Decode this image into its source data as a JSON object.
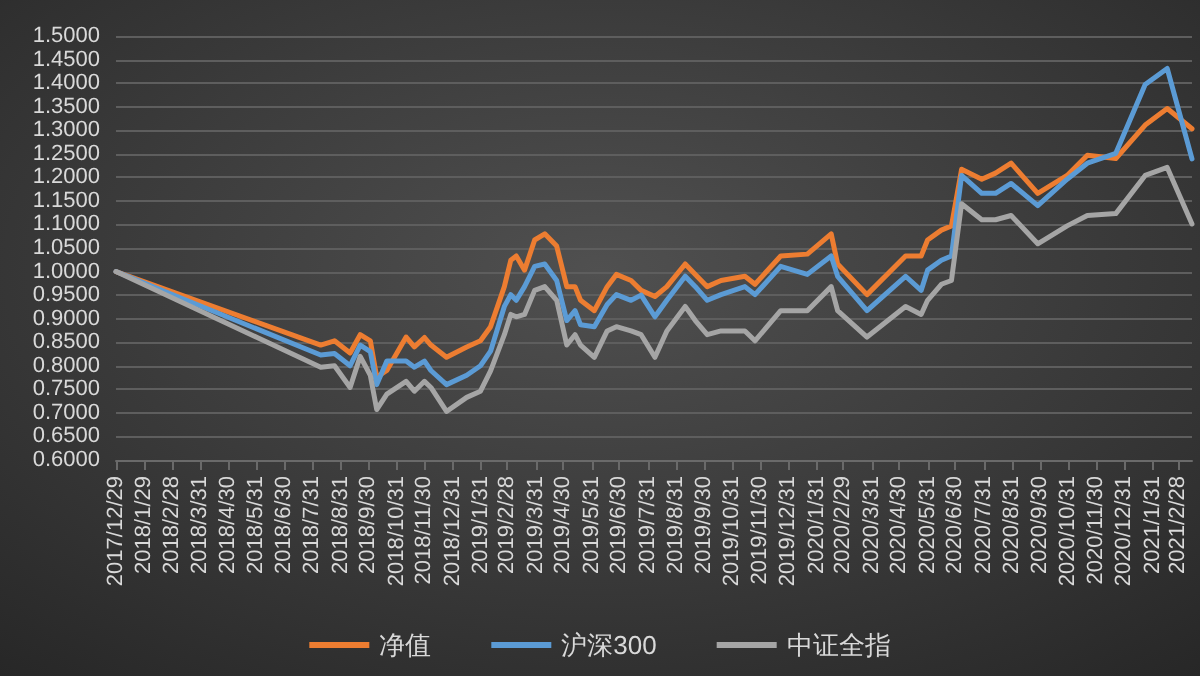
{
  "chart_data": {
    "type": "line",
    "x": [
      "2017-12-29",
      "2018-08-09",
      "2018-08-24",
      "2018-09-10",
      "2018-09-21",
      "2018-10-02",
      "2018-10-09",
      "2018-10-20",
      "2018-11-10",
      "2018-11-19",
      "2018-11-30",
      "2018-12-07",
      "2018-12-24",
      "2019-01-15",
      "2019-01-30",
      "2019-02-10",
      "2019-02-25",
      "2019-03-04",
      "2019-03-10",
      "2019-03-19",
      "2019-03-30",
      "2019-04-10",
      "2019-04-23",
      "2019-05-04",
      "2019-05-13",
      "2019-05-19",
      "2019-06-03",
      "2019-06-17",
      "2019-06-27",
      "2019-07-13",
      "2019-07-24",
      "2019-08-08",
      "2019-08-21",
      "2019-09-10",
      "2019-09-21",
      "2019-10-04",
      "2019-10-19",
      "2019-11-14",
      "2019-11-25",
      "2019-12-23",
      "2020-01-21",
      "2020-02-16",
      "2020-02-23",
      "2020-03-26",
      "2020-05-07",
      "2020-05-24",
      "2020-05-31",
      "2020-06-15",
      "2020-06-26",
      "2020-07-07",
      "2020-07-29",
      "2020-08-13",
      "2020-08-30",
      "2020-09-28",
      "2020-10-30",
      "2020-11-21",
      "2020-12-22",
      "2021-01-23",
      "2021-02-16",
      "2021-03-15"
    ],
    "series": [
      {
        "name": "净值",
        "color": "#ed7d31",
        "values": [
          1.0,
          0.844,
          0.853,
          0.827,
          0.866,
          0.853,
          0.776,
          0.79,
          0.861,
          0.84,
          0.86,
          0.844,
          0.818,
          0.84,
          0.853,
          0.883,
          0.968,
          1.024,
          1.033,
          1.003,
          1.067,
          1.08,
          1.054,
          0.968,
          0.968,
          0.939,
          0.917,
          0.968,
          0.994,
          0.981,
          0.96,
          0.947,
          0.968,
          1.016,
          0.994,
          0.968,
          0.981,
          0.99,
          0.973,
          1.033,
          1.037,
          1.08,
          1.016,
          0.951,
          1.033,
          1.033,
          1.067,
          1.088,
          1.097,
          1.217,
          1.196,
          1.209,
          1.23,
          1.166,
          1.204,
          1.247,
          1.24,
          1.311,
          1.346,
          1.303
        ]
      },
      {
        "name": "沪深300",
        "color": "#5b9bd5",
        "values": [
          1.0,
          0.823,
          0.826,
          0.8,
          0.844,
          0.83,
          0.76,
          0.81,
          0.81,
          0.797,
          0.81,
          0.79,
          0.76,
          0.78,
          0.8,
          0.831,
          0.926,
          0.951,
          0.939,
          0.968,
          1.011,
          1.016,
          0.981,
          0.896,
          0.917,
          0.887,
          0.883,
          0.93,
          0.951,
          0.939,
          0.95,
          0.904,
          0.939,
          0.99,
          0.968,
          0.939,
          0.951,
          0.968,
          0.951,
          1.011,
          0.994,
          1.033,
          0.99,
          0.917,
          0.99,
          0.96,
          1.003,
          1.024,
          1.033,
          1.204,
          1.166,
          1.166,
          1.187,
          1.14,
          1.196,
          1.23,
          1.251,
          1.397,
          1.431,
          1.239
        ]
      },
      {
        "name": "中证全指",
        "color": "#a5a5a5",
        "values": [
          1.0,
          0.797,
          0.8,
          0.754,
          0.82,
          0.78,
          0.707,
          0.74,
          0.767,
          0.746,
          0.767,
          0.754,
          0.703,
          0.733,
          0.746,
          0.789,
          0.866,
          0.909,
          0.904,
          0.909,
          0.96,
          0.968,
          0.939,
          0.844,
          0.866,
          0.844,
          0.818,
          0.874,
          0.883,
          0.874,
          0.866,
          0.818,
          0.874,
          0.926,
          0.896,
          0.866,
          0.874,
          0.874,
          0.853,
          0.917,
          0.917,
          0.968,
          0.917,
          0.861,
          0.926,
          0.909,
          0.939,
          0.973,
          0.981,
          1.144,
          1.11,
          1.11,
          1.119,
          1.059,
          1.097,
          1.119,
          1.123,
          1.204,
          1.221,
          1.101
        ]
      }
    ],
    "xlim": [
      "2017-12-29",
      "2021-03-15"
    ],
    "xticks": [
      {
        "value": "2017-12-29",
        "label": "2017/12/29"
      },
      {
        "value": "2018-01-29",
        "label": "2018/1/29"
      },
      {
        "value": "2018-02-28",
        "label": "2018/2/28"
      },
      {
        "value": "2018-03-31",
        "label": "2018/3/31"
      },
      {
        "value": "2018-04-30",
        "label": "2018/4/30"
      },
      {
        "value": "2018-05-31",
        "label": "2018/5/31"
      },
      {
        "value": "2018-06-30",
        "label": "2018/6/30"
      },
      {
        "value": "2018-07-31",
        "label": "2018/7/31"
      },
      {
        "value": "2018-08-31",
        "label": "2018/8/31"
      },
      {
        "value": "2018-09-30",
        "label": "2018/9/30"
      },
      {
        "value": "2018-10-31",
        "label": "2018/10/31"
      },
      {
        "value": "2018-11-30",
        "label": "2018/11/30"
      },
      {
        "value": "2018-12-31",
        "label": "2018/12/31"
      },
      {
        "value": "2019-01-31",
        "label": "2019/1/31"
      },
      {
        "value": "2019-02-28",
        "label": "2019/2/28"
      },
      {
        "value": "2019-03-31",
        "label": "2019/3/31"
      },
      {
        "value": "2019-04-30",
        "label": "2019/4/30"
      },
      {
        "value": "2019-05-31",
        "label": "2019/5/31"
      },
      {
        "value": "2019-06-30",
        "label": "2019/6/30"
      },
      {
        "value": "2019-07-31",
        "label": "2019/7/31"
      },
      {
        "value": "2019-08-31",
        "label": "2019/8/31"
      },
      {
        "value": "2019-09-30",
        "label": "2019/9/30"
      },
      {
        "value": "2019-10-31",
        "label": "2019/10/31"
      },
      {
        "value": "2019-11-30",
        "label": "2019/11/30"
      },
      {
        "value": "2019-12-31",
        "label": "2019/12/31"
      },
      {
        "value": "2020-01-31",
        "label": "2020/1/31"
      },
      {
        "value": "2020-02-29",
        "label": "2020/2/29"
      },
      {
        "value": "2020-03-31",
        "label": "2020/3/31"
      },
      {
        "value": "2020-04-30",
        "label": "2020/4/30"
      },
      {
        "value": "2020-05-31",
        "label": "2020/5/31"
      },
      {
        "value": "2020-06-30",
        "label": "2020/6/30"
      },
      {
        "value": "2020-07-31",
        "label": "2020/7/31"
      },
      {
        "value": "2020-08-31",
        "label": "2020/8/31"
      },
      {
        "value": "2020-09-30",
        "label": "2020/9/30"
      },
      {
        "value": "2020-10-31",
        "label": "2020/10/31"
      },
      {
        "value": "2020-11-30",
        "label": "2020/11/30"
      },
      {
        "value": "2020-12-31",
        "label": "2020/12/31"
      },
      {
        "value": "2021-01-31",
        "label": "2021/1/31"
      },
      {
        "value": "2021-02-28",
        "label": "2021/2/28"
      }
    ],
    "ylim": [
      0.6,
      1.5
    ],
    "yticks": [
      {
        "value": 0.6,
        "label": "0.6000"
      },
      {
        "value": 0.65,
        "label": "0.6500"
      },
      {
        "value": 0.7,
        "label": "0.7000"
      },
      {
        "value": 0.75,
        "label": "0.7500"
      },
      {
        "value": 0.8,
        "label": "0.8000"
      },
      {
        "value": 0.85,
        "label": "0.8500"
      },
      {
        "value": 0.9,
        "label": "0.9000"
      },
      {
        "value": 0.95,
        "label": "0.9500"
      },
      {
        "value": 1.0,
        "label": "1.0000"
      },
      {
        "value": 1.05,
        "label": "1.0500"
      },
      {
        "value": 1.1,
        "label": "1.1000"
      },
      {
        "value": 1.15,
        "label": "1.1500"
      },
      {
        "value": 1.2,
        "label": "1.2000"
      },
      {
        "value": 1.25,
        "label": "1.2500"
      },
      {
        "value": 1.3,
        "label": "1.3000"
      },
      {
        "value": 1.35,
        "label": "1.3500"
      },
      {
        "value": 1.4,
        "label": "1.4000"
      },
      {
        "value": 1.45,
        "label": "1.4500"
      },
      {
        "value": 1.5,
        "label": "1.5000"
      }
    ],
    "grid": "y",
    "legend": "bottom"
  }
}
